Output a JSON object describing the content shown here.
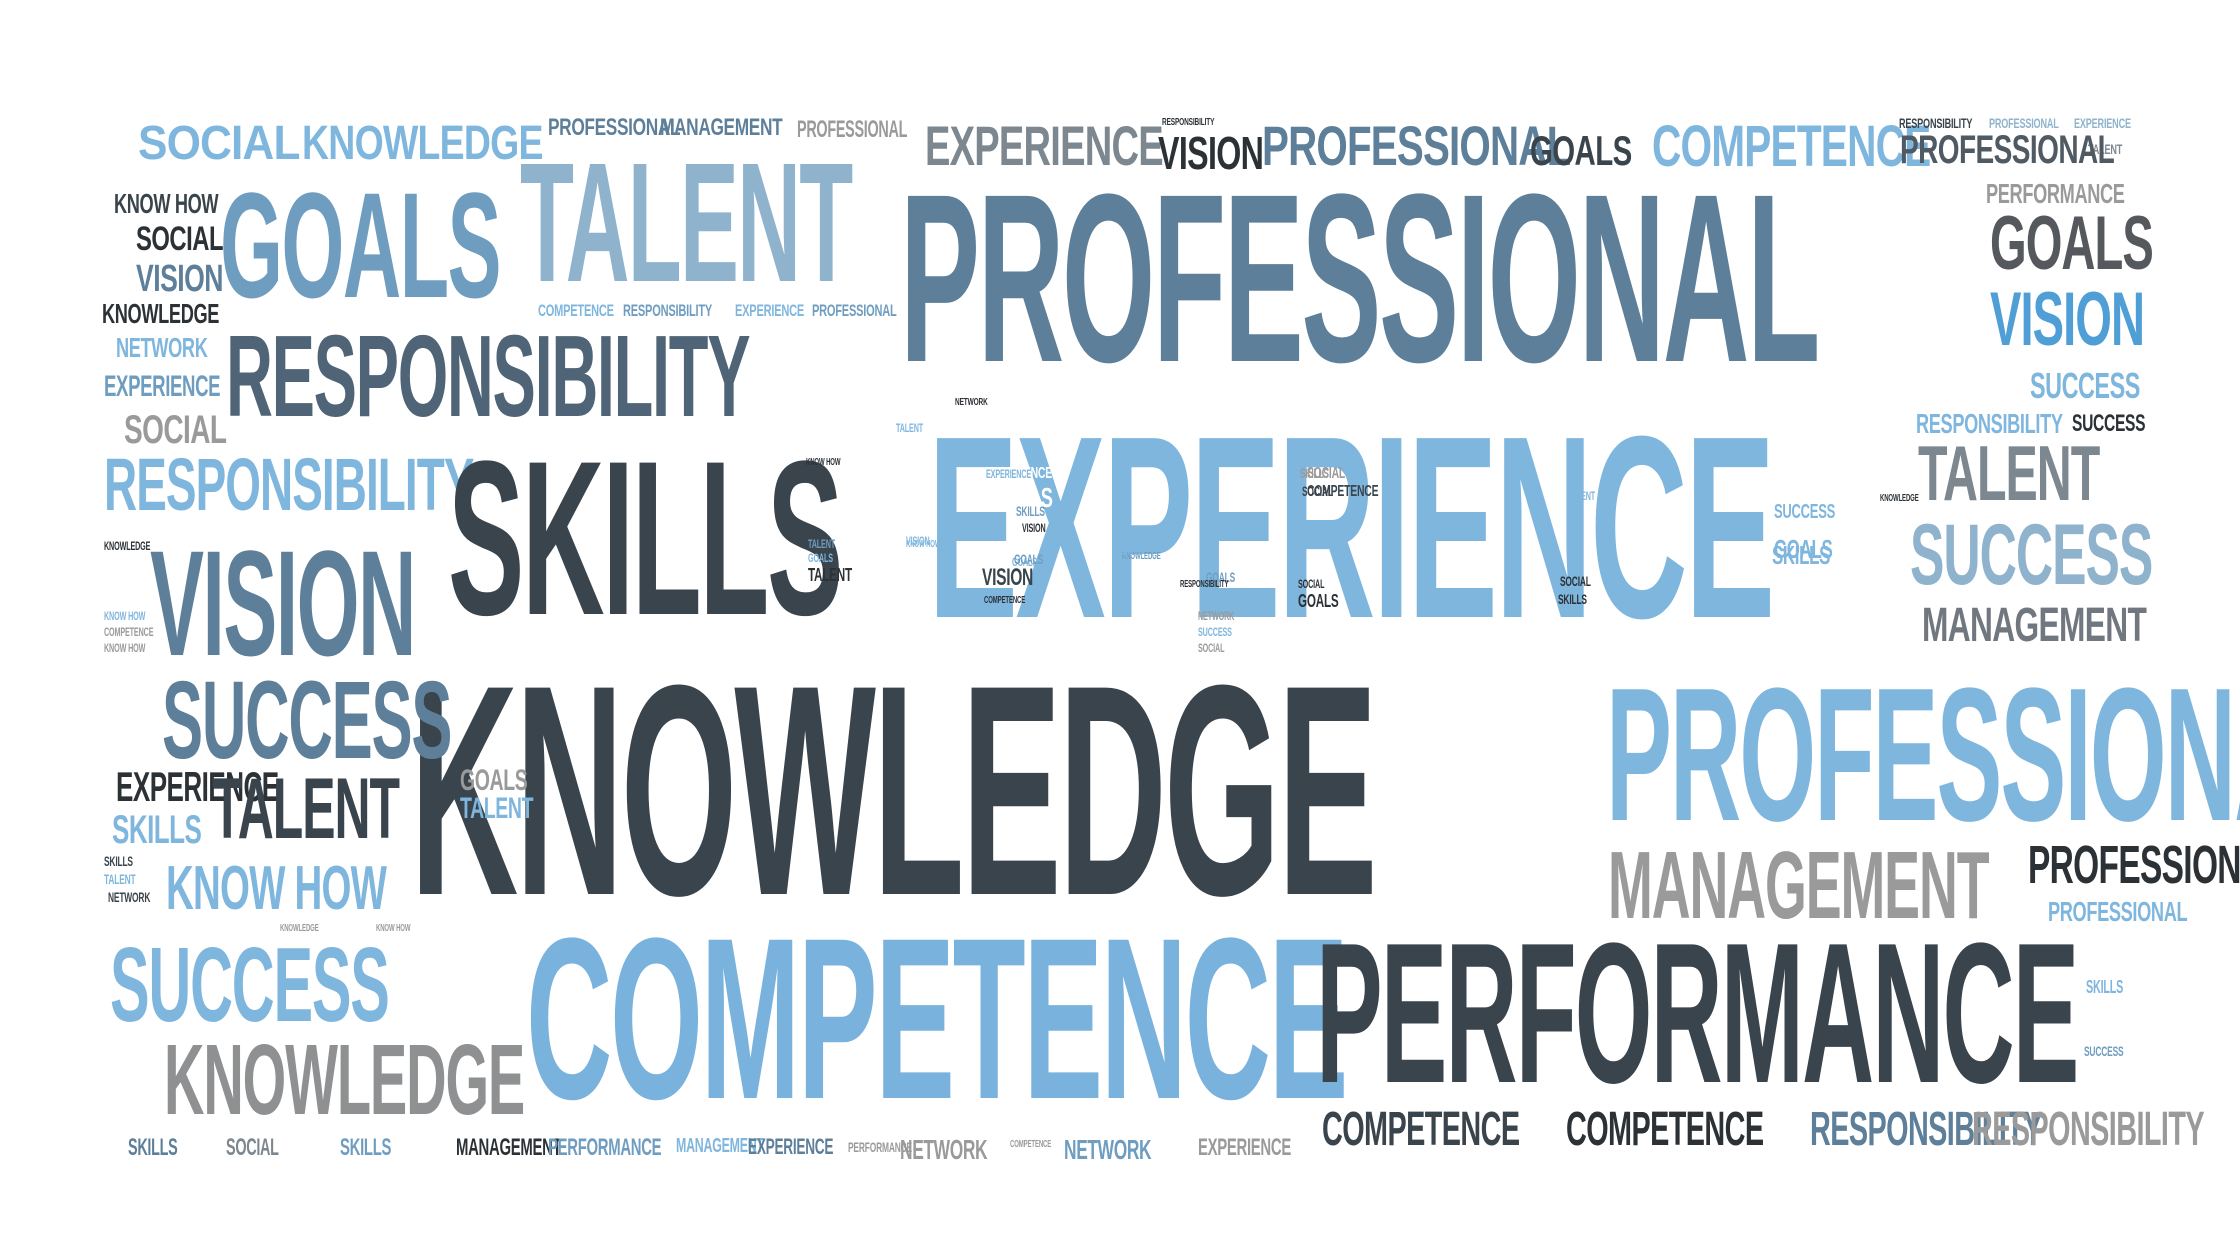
{
  "palette": {
    "light_blue": "#7fb6de",
    "mid_blue": "#6e9dc0",
    "slate_blue": "#5e7f99",
    "dark": "#3a444c",
    "gray": "#9a9a9a",
    "near_black": "#2c3136"
  },
  "words": [
    "SOCIAL",
    "KNOWLEDGE",
    "PROFESSIONAL",
    "MANAGEMENT",
    "PROFESSIONAL",
    "EXPERIENCE",
    "RESPONSIBILITY",
    "VISION",
    "PROFESSIONAL",
    "GOALS",
    "COMPETENCE",
    "RESPONSIBILITY",
    "PROFESSIONAL",
    "EXPERIENCE",
    "TALENT",
    "PERFORMANCE",
    "KNOW HOW",
    "SOCIAL",
    "VISION",
    "KNOWLEDGE",
    "NETWORK",
    "EXPERIENCE",
    "SOCIAL",
    "GOALS",
    "TALENT",
    "PROFESSIONAL",
    "GOALS",
    "VISION",
    "SUCCESS",
    "COMPETENCE",
    "RESPONSIBILITY",
    "EXPERIENCE",
    "PROFESSIONAL",
    "RESPONSIBILITY",
    "NETWORK",
    "RESPONSIBILITY",
    "SUCCESS",
    "TALENT",
    "RESPONSIBILITY",
    "SKILLS",
    "EXPERIENCE",
    "VISION",
    "SUCCESS",
    "MANAGEMENT",
    "KNOWLEDGE",
    "KNOW HOW",
    "COMPETENCE",
    "KNOW HOW",
    "SOCIAL",
    "COMPETENCE",
    "SUCCESS",
    "SKILLS",
    "KNOWLEDGE",
    "KNOW HOW",
    "TALENT",
    "GOALS",
    "GOALS",
    "TALENT",
    "KNOWLEDGE",
    "KNOWLEDGE",
    "SUCCESS",
    "EXPERIENCE",
    "TALENT",
    "SKILLS",
    "SKILLS",
    "TALENT",
    "NETWORK",
    "KNOW HOW",
    "KNOWLEDGE",
    "KNOW HOW",
    "MANAGEMENT",
    "PROFESSIONAL",
    "PROFESSIONAL",
    "SKILLS",
    "SUCCESS",
    "SUCCESS",
    "EXPERIENCE",
    "COMPETENCE",
    "PERFORMANCE",
    "KNOWLEDGE",
    "PERFORMANCE",
    "EXPERIENCE",
    "SKILLS",
    "VISION",
    "SUCCESS",
    "SKILLS",
    "SKILLS",
    "SOCIAL",
    "GOALS",
    "SUCCESS",
    "SOCIAL",
    "TALENT",
    "GOALS",
    "SKILLS",
    "VISION",
    "VISION",
    "SOCIAL",
    "GOALS",
    "GOALS",
    "NETWORK",
    "SKILLS",
    "SOCIAL",
    "SKILLS",
    "MANAGEMENT",
    "PERFORMANCE",
    "MANAGEMENT",
    "EXPERIENCE",
    "PERFORMANCE",
    "NETWORK",
    "COMPETENCE",
    "NETWORK",
    "EXPERIENCE",
    "COMPETENCE",
    "COMPETENCE",
    "RESPONSIBILITY",
    "RESPONSIBILITY",
    "PERFORMANCE",
    "SUCCESS",
    "COMPETENCE",
    "SKILLS",
    "SOCIAL",
    "NETWORK",
    "EXPERIENCE",
    "SUCCESS",
    "SKILLS",
    "SOCIAL",
    "NETWORK",
    "SUCCESS",
    "EXPERIENCE",
    "EXPERIENCE",
    "KNOW HOW",
    "SOCIAL",
    "SUCCESS",
    "EXPERIENCE",
    "NETWORK",
    "SOCIAL",
    "VISION",
    "VISION",
    "VISION",
    "TALENT",
    "RESPONSIBILITY",
    "GOALS",
    "TALENT",
    "SOCIAL",
    "NETWORK",
    "SKILLS",
    "SOCIAL",
    "VISION",
    "SKILLS",
    "SKILLS"
  ]
}
